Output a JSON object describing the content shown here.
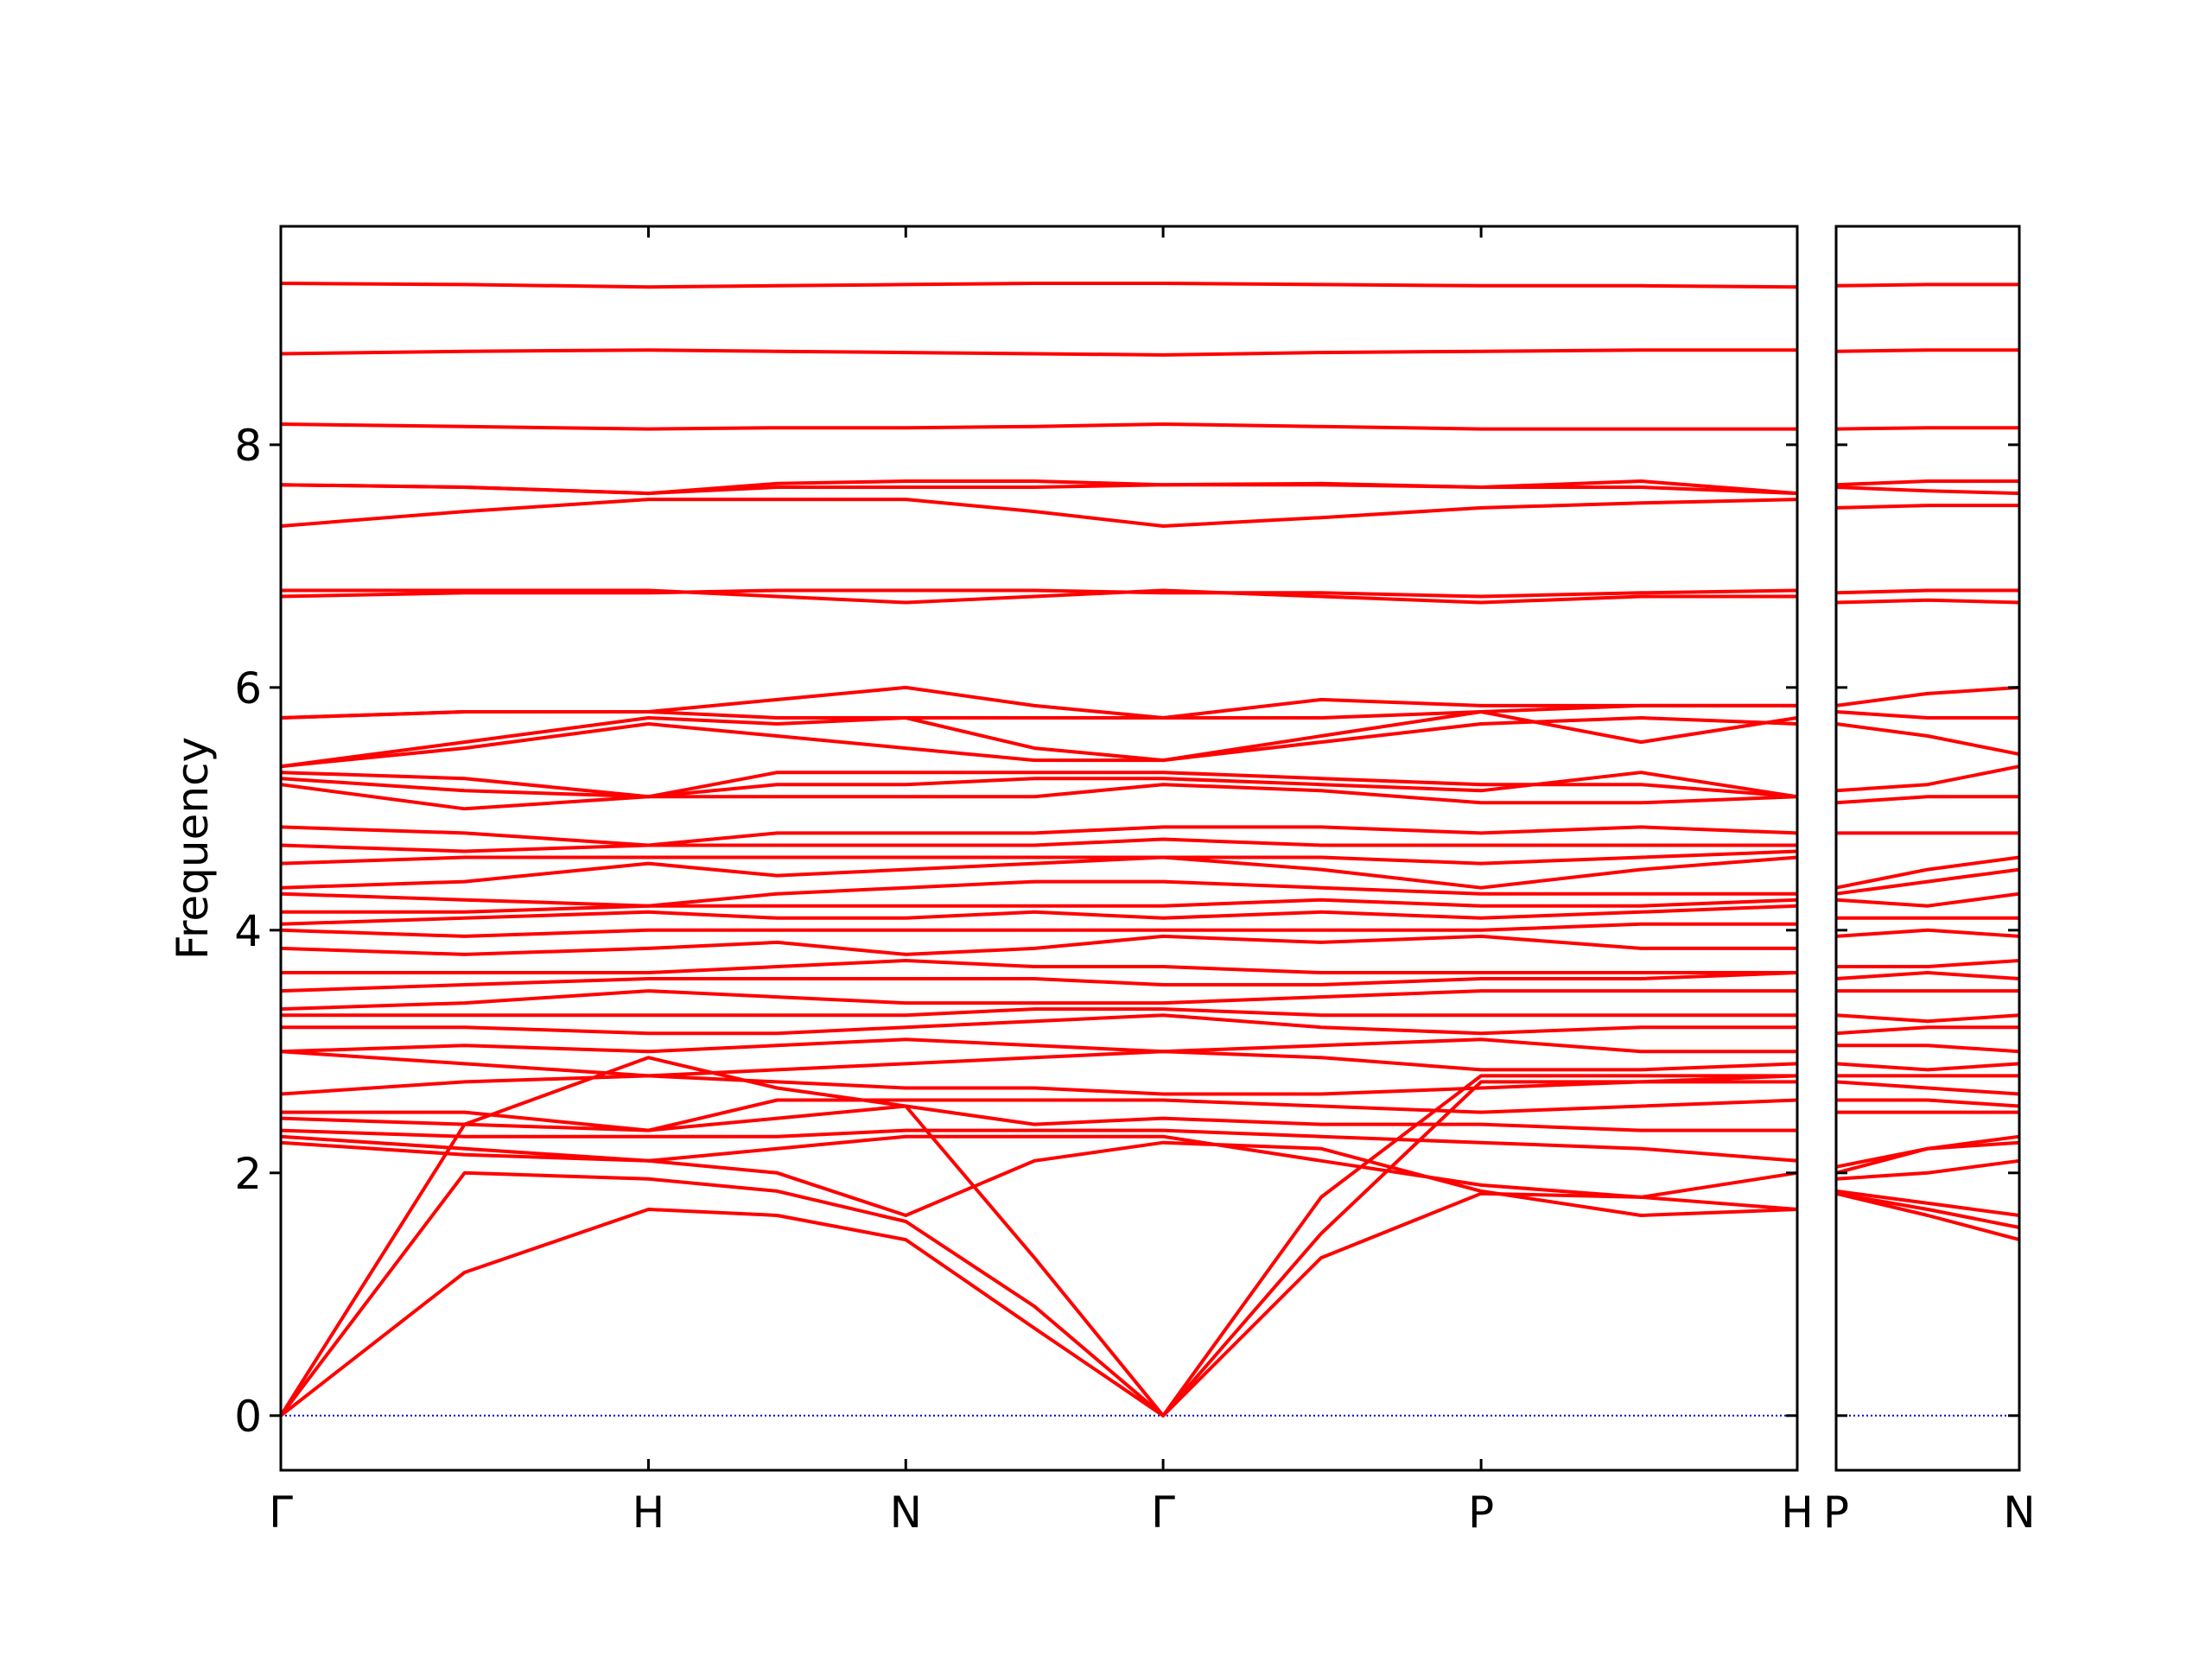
{
  "chart_data": [
    {
      "type": "line",
      "ylabel": "Frequency",
      "color": "#ff0000",
      "zero_line": true,
      "zero_line_color": "#0000cc",
      "show_ytick_labels": true,
      "x": [
        0,
        0.5,
        1,
        1.35,
        1.7,
        2.05,
        2.4,
        2.83,
        3.265,
        3.7,
        4.125
      ],
      "xlim": [
        0,
        4.125
      ],
      "xticks": [
        {
          "value": 0,
          "label": "Γ"
        },
        {
          "value": 1,
          "label": "H"
        },
        {
          "value": 1.7,
          "label": "N"
        },
        {
          "value": 2.4,
          "label": "Γ"
        },
        {
          "value": 3.265,
          "label": "P"
        },
        {
          "value": 4.125,
          "label": "H"
        }
      ],
      "ylim": [
        -0.45,
        9.8
      ],
      "yticks": [
        0,
        2,
        4,
        6,
        8
      ],
      "bands": [
        [
          0,
          1.18,
          1.7,
          1.65,
          1.45,
          0.72,
          0,
          1.3,
          1.83,
          1.8,
          1.7
        ],
        [
          0,
          2.0,
          1.95,
          1.85,
          1.6,
          0.9,
          0,
          1.5,
          2.75,
          2.75,
          2.75
        ],
        [
          0,
          2.4,
          2.95,
          2.7,
          2.55,
          1.3,
          0,
          1.8,
          2.8,
          2.8,
          2.8
        ],
        [
          2.25,
          2.15,
          2.1,
          2.0,
          1.65,
          2.1,
          2.25,
          2.2,
          1.85,
          1.65,
          1.7
        ],
        [
          2.3,
          2.2,
          2.1,
          2.2,
          2.3,
          2.3,
          2.3,
          2.1,
          1.9,
          1.8,
          2.0
        ],
        [
          2.35,
          2.3,
          2.3,
          2.3,
          2.35,
          2.35,
          2.35,
          2.3,
          2.25,
          2.2,
          2.1
        ],
        [
          2.45,
          2.4,
          2.35,
          2.45,
          2.55,
          2.4,
          2.45,
          2.4,
          2.4,
          2.35,
          2.35
        ],
        [
          2.5,
          2.5,
          2.35,
          2.6,
          2.6,
          2.6,
          2.6,
          2.55,
          2.5,
          2.55,
          2.6
        ],
        [
          2.65,
          2.75,
          2.8,
          2.75,
          2.7,
          2.7,
          2.65,
          2.65,
          2.7,
          2.75,
          2.8
        ],
        [
          3.0,
          2.9,
          2.8,
          2.85,
          2.9,
          2.95,
          3.0,
          2.95,
          2.85,
          2.85,
          2.9
        ],
        [
          3.0,
          3.05,
          3.0,
          3.05,
          3.1,
          3.05,
          3.0,
          3.05,
          3.1,
          3.0,
          3.0
        ],
        [
          3.2,
          3.2,
          3.15,
          3.15,
          3.2,
          3.25,
          3.3,
          3.2,
          3.15,
          3.2,
          3.2
        ],
        [
          3.3,
          3.3,
          3.3,
          3.3,
          3.3,
          3.35,
          3.35,
          3.3,
          3.3,
          3.3,
          3.3
        ],
        [
          3.35,
          3.4,
          3.5,
          3.45,
          3.4,
          3.4,
          3.4,
          3.45,
          3.5,
          3.5,
          3.5
        ],
        [
          3.5,
          3.55,
          3.6,
          3.6,
          3.6,
          3.6,
          3.55,
          3.55,
          3.6,
          3.6,
          3.65
        ],
        [
          3.65,
          3.65,
          3.65,
          3.7,
          3.75,
          3.7,
          3.7,
          3.65,
          3.65,
          3.65,
          3.65
        ],
        [
          3.85,
          3.8,
          3.85,
          3.9,
          3.8,
          3.85,
          3.95,
          3.9,
          3.95,
          3.85,
          3.85
        ],
        [
          4.0,
          3.95,
          4.0,
          4.0,
          4.0,
          4.0,
          4.0,
          4.0,
          4.0,
          4.05,
          4.05
        ],
        [
          4.05,
          4.1,
          4.15,
          4.1,
          4.1,
          4.15,
          4.1,
          4.15,
          4.1,
          4.15,
          4.2
        ],
        [
          4.15,
          4.15,
          4.2,
          4.2,
          4.2,
          4.2,
          4.2,
          4.25,
          4.2,
          4.2,
          4.25
        ],
        [
          4.3,
          4.25,
          4.2,
          4.3,
          4.35,
          4.4,
          4.4,
          4.35,
          4.3,
          4.3,
          4.3
        ],
        [
          4.35,
          4.4,
          4.55,
          4.45,
          4.5,
          4.55,
          4.6,
          4.5,
          4.35,
          4.5,
          4.6
        ],
        [
          4.55,
          4.6,
          4.6,
          4.6,
          4.6,
          4.6,
          4.6,
          4.6,
          4.55,
          4.6,
          4.65
        ],
        [
          4.7,
          4.65,
          4.7,
          4.7,
          4.7,
          4.7,
          4.75,
          4.7,
          4.7,
          4.7,
          4.7
        ],
        [
          4.85,
          4.8,
          4.7,
          4.8,
          4.8,
          4.8,
          4.85,
          4.85,
          4.8,
          4.85,
          4.8
        ],
        [
          5.2,
          5.0,
          5.1,
          5.1,
          5.1,
          5.1,
          5.2,
          5.15,
          5.05,
          5.05,
          5.1
        ],
        [
          5.25,
          5.15,
          5.1,
          5.2,
          5.2,
          5.25,
          5.25,
          5.2,
          5.15,
          5.3,
          5.1
        ],
        [
          5.3,
          5.25,
          5.1,
          5.3,
          5.3,
          5.3,
          5.3,
          5.25,
          5.2,
          5.2,
          5.1
        ],
        [
          5.35,
          5.5,
          5.7,
          5.6,
          5.5,
          5.4,
          5.4,
          5.55,
          5.7,
          5.75,
          5.7
        ],
        [
          5.35,
          5.55,
          5.75,
          5.7,
          5.75,
          5.5,
          5.4,
          5.6,
          5.8,
          5.55,
          5.75
        ],
        [
          5.75,
          5.8,
          5.8,
          5.75,
          5.75,
          5.75,
          5.75,
          5.75,
          5.8,
          5.85,
          5.85
        ],
        [
          5.75,
          5.8,
          5.8,
          5.9,
          6.0,
          5.85,
          5.75,
          5.9,
          5.85,
          5.85,
          5.85
        ],
        [
          6.75,
          6.78,
          6.78,
          6.8,
          6.8,
          6.8,
          6.78,
          6.78,
          6.75,
          6.78,
          6.8
        ],
        [
          6.8,
          6.8,
          6.8,
          6.75,
          6.7,
          6.75,
          6.8,
          6.75,
          6.7,
          6.75,
          6.75
        ],
        [
          7.33,
          7.45,
          7.55,
          7.55,
          7.55,
          7.45,
          7.33,
          7.4,
          7.48,
          7.52,
          7.55
        ],
        [
          7.67,
          7.65,
          7.6,
          7.65,
          7.65,
          7.65,
          7.67,
          7.67,
          7.65,
          7.65,
          7.6
        ],
        [
          7.67,
          7.65,
          7.6,
          7.68,
          7.7,
          7.7,
          7.67,
          7.68,
          7.65,
          7.7,
          7.6
        ],
        [
          8.17,
          8.15,
          8.13,
          8.14,
          8.14,
          8.15,
          8.17,
          8.15,
          8.13,
          8.13,
          8.13
        ],
        [
          8.75,
          8.77,
          8.78,
          8.77,
          8.76,
          8.75,
          8.74,
          8.76,
          8.77,
          8.78,
          8.78
        ],
        [
          9.33,
          9.32,
          9.3,
          9.31,
          9.32,
          9.33,
          9.33,
          9.32,
          9.31,
          9.31,
          9.3
        ]
      ]
    },
    {
      "type": "line",
      "color": "#ff0000",
      "zero_line": true,
      "zero_line_color": "#0000cc",
      "show_ytick_labels": false,
      "x": [
        0,
        0.25,
        0.5
      ],
      "xlim": [
        0,
        0.5
      ],
      "xticks": [
        {
          "value": 0,
          "label": "P"
        },
        {
          "value": 0.5,
          "label": "N"
        }
      ],
      "ylim": [
        -0.45,
        9.8
      ],
      "yticks": [
        0,
        2,
        4,
        6,
        8
      ],
      "bands": [
        [
          1.83,
          1.65,
          1.45
        ],
        [
          1.83,
          1.7,
          1.55
        ],
        [
          1.85,
          1.75,
          1.65
        ],
        [
          1.95,
          2.0,
          2.1
        ],
        [
          2.0,
          2.2,
          2.3
        ],
        [
          2.05,
          2.2,
          2.25
        ],
        [
          2.5,
          2.5,
          2.5
        ],
        [
          2.6,
          2.6,
          2.55
        ],
        [
          2.75,
          2.7,
          2.65
        ],
        [
          2.8,
          2.8,
          2.8
        ],
        [
          2.9,
          2.85,
          2.9
        ],
        [
          3.05,
          3.05,
          3.0
        ],
        [
          3.15,
          3.2,
          3.2
        ],
        [
          3.3,
          3.25,
          3.3
        ],
        [
          3.5,
          3.5,
          3.5
        ],
        [
          3.6,
          3.65,
          3.6
        ],
        [
          3.7,
          3.7,
          3.75
        ],
        [
          3.95,
          4.0,
          3.95
        ],
        [
          4.1,
          4.1,
          4.1
        ],
        [
          4.25,
          4.2,
          4.3
        ],
        [
          4.3,
          4.4,
          4.5
        ],
        [
          4.35,
          4.5,
          4.6
        ],
        [
          4.8,
          4.8,
          4.8
        ],
        [
          5.05,
          5.1,
          5.1
        ],
        [
          5.15,
          5.2,
          5.35
        ],
        [
          5.7,
          5.6,
          5.45
        ],
        [
          5.8,
          5.75,
          5.75
        ],
        [
          5.85,
          5.95,
          6.0
        ],
        [
          6.7,
          6.72,
          6.7
        ],
        [
          6.78,
          6.8,
          6.8
        ],
        [
          7.48,
          7.5,
          7.5
        ],
        [
          7.65,
          7.62,
          7.6
        ],
        [
          7.67,
          7.7,
          7.7
        ],
        [
          8.13,
          8.14,
          8.14
        ],
        [
          8.77,
          8.78,
          8.78
        ],
        [
          9.31,
          9.32,
          9.32
        ]
      ]
    }
  ]
}
